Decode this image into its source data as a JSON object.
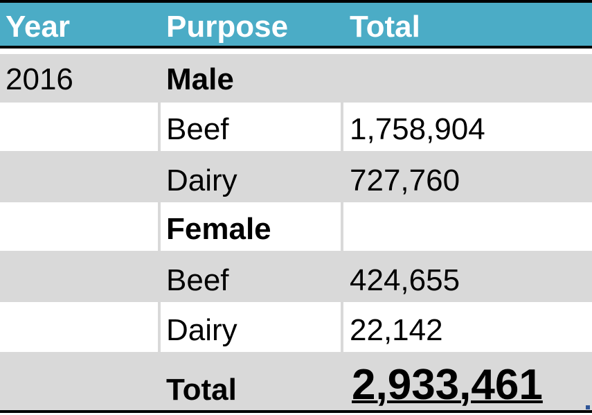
{
  "headers": {
    "year": "Year",
    "purpose": "Purpose",
    "total": "Total"
  },
  "rows": [
    {
      "year": "2016",
      "purpose": "Male",
      "total": ""
    },
    {
      "year": "",
      "purpose": "Beef",
      "total": "1,758,904"
    },
    {
      "year": "",
      "purpose": "Dairy",
      "total": "727,760"
    },
    {
      "year": "",
      "purpose": "Female",
      "total": ""
    },
    {
      "year": "",
      "purpose": "Beef",
      "total": "424,655"
    },
    {
      "year": "",
      "purpose": "Dairy",
      "total": "22,142"
    },
    {
      "year": "",
      "purpose": "Total",
      "total": "2,933,461"
    }
  ],
  "colors": {
    "header_bg": "#4bacc6",
    "band_grey": "#d9d9d9",
    "header_text": "#ffffff"
  }
}
